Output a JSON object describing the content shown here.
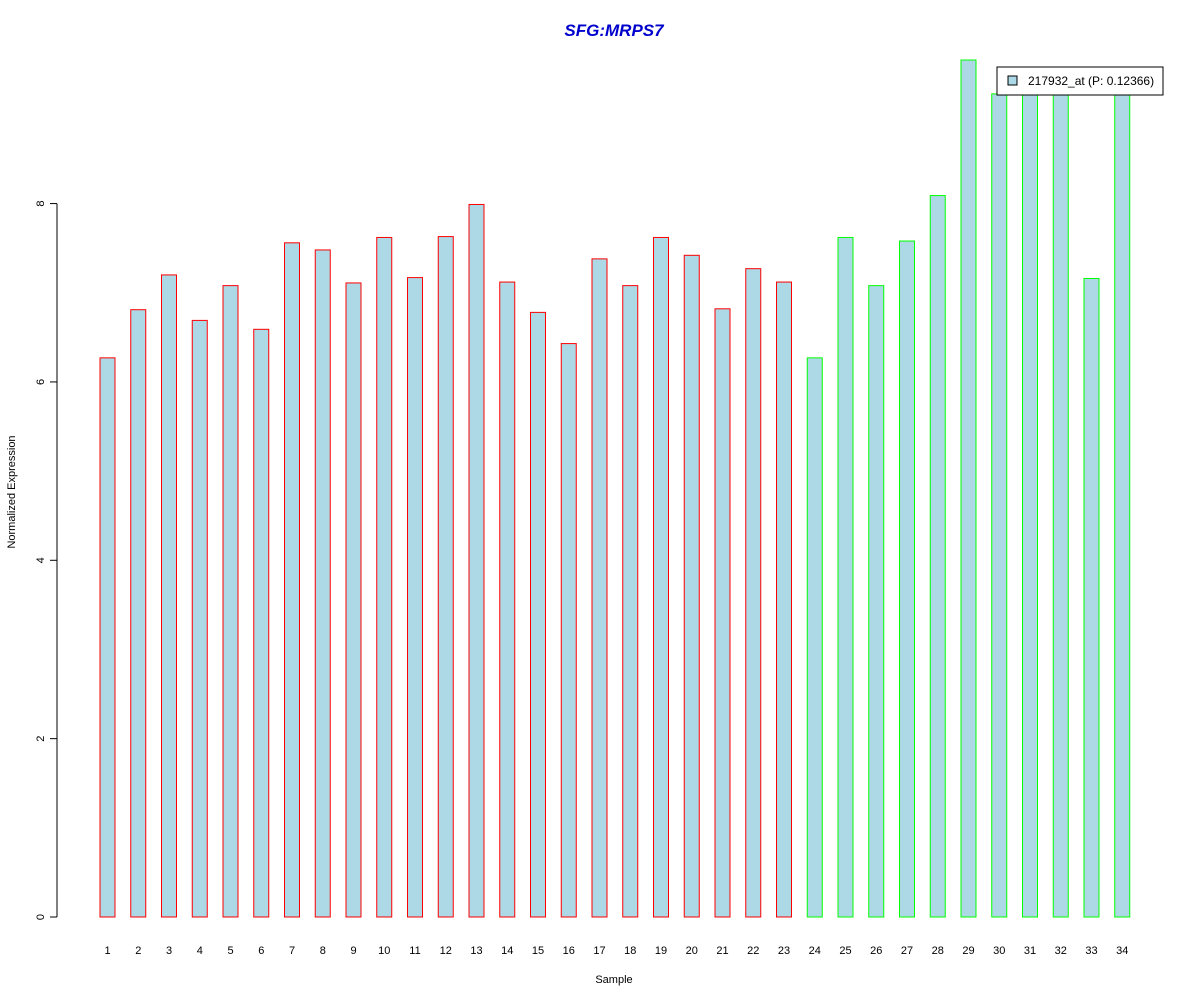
{
  "chart_data": {
    "type": "bar",
    "title": "SFG:MRPS7",
    "xlabel": "Sample",
    "ylabel": "Normalized Expression",
    "categories": [
      "1",
      "2",
      "3",
      "4",
      "5",
      "6",
      "7",
      "8",
      "9",
      "10",
      "11",
      "12",
      "13",
      "14",
      "15",
      "16",
      "17",
      "18",
      "19",
      "20",
      "21",
      "22",
      "23",
      "24",
      "25",
      "26",
      "27",
      "28",
      "29",
      "30",
      "31",
      "32",
      "33",
      "34"
    ],
    "values": [
      6.27,
      6.81,
      7.2,
      6.69,
      7.08,
      6.59,
      7.56,
      7.48,
      7.11,
      7.62,
      7.17,
      7.63,
      7.99,
      7.12,
      6.78,
      6.43,
      7.38,
      7.08,
      7.62,
      7.42,
      6.82,
      7.27,
      7.12,
      6.27,
      7.62,
      7.08,
      7.58,
      8.09,
      9.61,
      9.23,
      9.22,
      9.22,
      7.16,
      9.3
    ],
    "groups": [
      "red",
      "red",
      "red",
      "red",
      "red",
      "red",
      "red",
      "red",
      "red",
      "red",
      "red",
      "red",
      "red",
      "red",
      "red",
      "red",
      "red",
      "red",
      "red",
      "red",
      "red",
      "red",
      "red",
      "green",
      "green",
      "green",
      "green",
      "green",
      "green",
      "green",
      "green",
      "green",
      "green",
      "green"
    ],
    "yticks": [
      "0",
      "2",
      "4",
      "6",
      "8"
    ],
    "ylim": [
      0,
      9.61
    ],
    "grid": false,
    "legend": {
      "label": "217932_at (P: 0.12366)",
      "position": "top-right"
    },
    "colors": {
      "fill": "#add8e6",
      "border_red": "#ff0000",
      "border_green": "#00ff00",
      "title": "#0000cd"
    }
  }
}
